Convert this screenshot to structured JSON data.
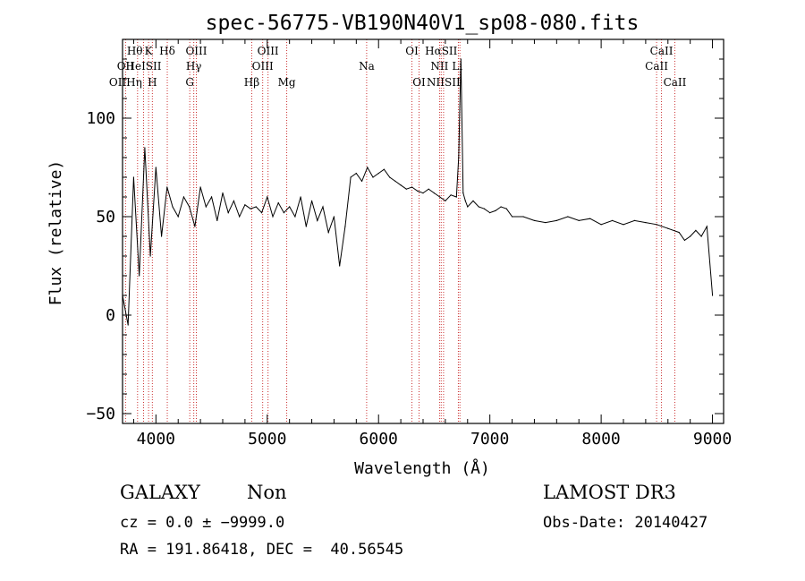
{
  "chart_data": {
    "type": "line",
    "title": "spec-56775-VB190N40V1_sp08-080.fits",
    "xlabel": "Wavelength (Å)",
    "ylabel": "Flux (relative)",
    "xlim": [
      3700,
      9100
    ],
    "ylim": [
      -55,
      140
    ],
    "x_ticks": [
      4000,
      5000,
      6000,
      7000,
      8000,
      9000
    ],
    "y_ticks": [
      -50,
      0,
      50,
      100
    ],
    "x_tick_labels": [
      "4000",
      "5000",
      "6000",
      "7000",
      "8000",
      "9000"
    ],
    "y_tick_labels": [
      "−50",
      "0",
      "50",
      "100"
    ],
    "grid": false,
    "series": [
      {
        "x": [
          3700,
          3750,
          3800,
          3850,
          3900,
          3950,
          4000,
          4050,
          4100,
          4150,
          4200,
          4250,
          4300,
          4350,
          4400,
          4450,
          4500,
          4550,
          4600,
          4650,
          4700,
          4750,
          4800,
          4850,
          4900,
          4950,
          5000,
          5050,
          5100,
          5150,
          5200,
          5250,
          5300,
          5350,
          5400,
          5450,
          5500,
          5550,
          5600,
          5650,
          5700,
          5750,
          5800,
          5850,
          5900,
          5950,
          6000,
          6050,
          6100,
          6150,
          6200,
          6250,
          6300,
          6350,
          6400,
          6450,
          6500,
          6550,
          6600,
          6650,
          6700,
          6720,
          6740,
          6760,
          6780,
          6800,
          6850,
          6900,
          6950,
          7000,
          7050,
          7100,
          7150,
          7200,
          7300,
          7400,
          7500,
          7600,
          7700,
          7800,
          7900,
          8000,
          8100,
          8200,
          8300,
          8400,
          8500,
          8600,
          8700,
          8750,
          8800,
          8850,
          8900,
          8950,
          9000
        ],
        "values": [
          10,
          -5,
          70,
          20,
          85,
          30,
          75,
          40,
          65,
          55,
          50,
          60,
          55,
          45,
          65,
          55,
          60,
          48,
          62,
          52,
          58,
          50,
          56,
          54,
          55,
          52,
          60,
          50,
          57,
          52,
          55,
          50,
          60,
          45,
          58,
          48,
          55,
          42,
          50,
          25,
          45,
          70,
          72,
          68,
          75,
          70,
          72,
          74,
          70,
          68,
          66,
          64,
          65,
          63,
          62,
          64,
          62,
          60,
          58,
          61,
          60,
          80,
          130,
          62,
          58,
          55,
          58,
          55,
          54,
          52,
          53,
          55,
          54,
          50,
          50,
          48,
          47,
          48,
          50,
          48,
          49,
          46,
          48,
          46,
          48,
          47,
          46,
          44,
          42,
          38,
          40,
          43,
          40,
          45,
          10
        ]
      }
    ],
    "line_labels": {
      "top": [
        {
          "text": "Hθ",
          "x": 3810
        },
        {
          "text": "K",
          "x": 3934
        },
        {
          "text": "Hδ",
          "x": 4102
        },
        {
          "text": "OIII",
          "x": 4363
        },
        {
          "text": "OIII",
          "x": 5007
        },
        {
          "text": "OI",
          "x": 6300
        },
        {
          "text": "HαSII",
          "x": 6563
        },
        {
          "text": "CaII",
          "x": 8542
        }
      ],
      "middle": [
        {
          "text": "OII",
          "x": 3727
        },
        {
          "text": "HeISII",
          "x": 3889
        },
        {
          "text": "Hγ",
          "x": 4340
        },
        {
          "text": "OIII",
          "x": 4959
        },
        {
          "text": "Na",
          "x": 5893
        },
        {
          "text": "NII",
          "x": 6548
        },
        {
          "text": "Li",
          "x": 6708
        },
        {
          "text": "CaII",
          "x": 8498
        }
      ],
      "bottom": [
        {
          "text": "OIIHη",
          "x": 3727
        },
        {
          "text": "H",
          "x": 3968
        },
        {
          "text": "G",
          "x": 4304
        },
        {
          "text": "Hβ",
          "x": 4861
        },
        {
          "text": "Mg",
          "x": 5175
        },
        {
          "text": "OI",
          "x": 6364
        },
        {
          "text": "NIISII",
          "x": 6584
        },
        {
          "text": "CaII",
          "x": 8662
        }
      ]
    },
    "line_markers": [
      3727,
      3835,
      3889,
      3934,
      3968,
      4102,
      4304,
      4340,
      4363,
      4861,
      4959,
      5007,
      5175,
      5893,
      6300,
      6364,
      6548,
      6563,
      6584,
      6717,
      6731,
      8498,
      8542,
      8662
    ]
  },
  "info": {
    "class_label": "GALAXY",
    "subclass_label": "Non",
    "survey": "LAMOST DR3",
    "cz_line": "cz = 0.0 ± −9999.0",
    "obs_date_line": "Obs-Date: 20140427",
    "radec_line": "RA = 191.86418, DEC =  40.56545"
  },
  "colors": {
    "marker": "#cc3333",
    "spectrum": "#000000"
  }
}
